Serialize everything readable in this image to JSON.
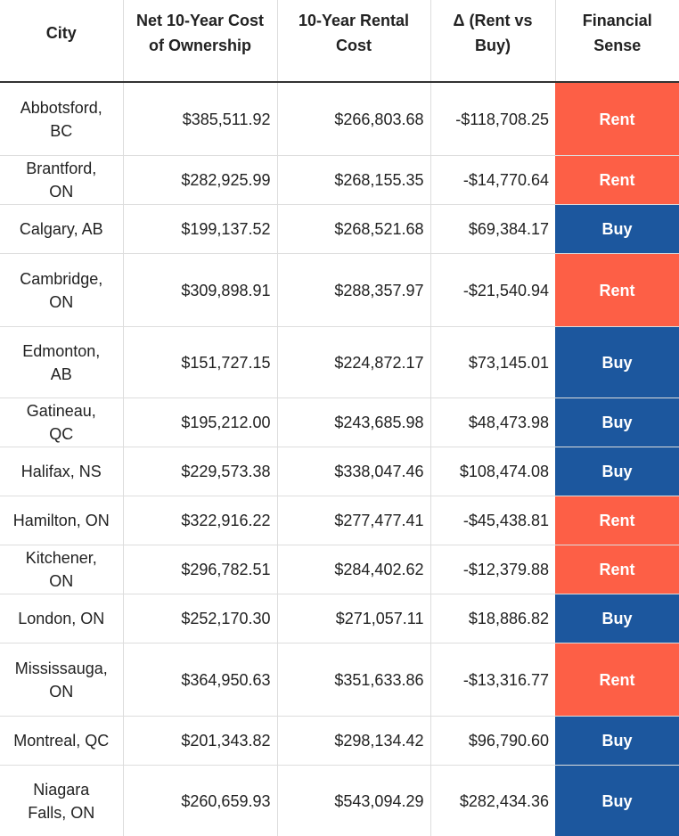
{
  "table": {
    "header": [
      "City",
      "Net 10-Year Cost of Ownership",
      "10-Year Rental Cost",
      "Δ (Rent vs Buy)",
      "Financial Sense"
    ],
    "rows": [
      [
        "Abbotsford, BC",
        "$385,511.92",
        "$266,803.68",
        "-$118,708.25",
        "Rent"
      ],
      [
        "Brantford, ON",
        "$282,925.99",
        "$268,155.35",
        "-$14,770.64",
        "Rent"
      ],
      [
        "Calgary, AB",
        "$199,137.52",
        "$268,521.68",
        "$69,384.17",
        "Buy"
      ],
      [
        "Cambridge, ON",
        "$309,898.91",
        "$288,357.97",
        "-$21,540.94",
        "Rent"
      ],
      [
        "Edmonton, AB",
        "$151,727.15",
        "$224,872.17",
        "$73,145.01",
        "Buy"
      ],
      [
        "Gatineau, QC",
        "$195,212.00",
        "$243,685.98",
        "$48,473.98",
        "Buy"
      ],
      [
        "Halifax, NS",
        "$229,573.38",
        "$338,047.46",
        "$108,474.08",
        "Buy"
      ],
      [
        "Hamilton, ON",
        "$322,916.22",
        "$277,477.41",
        "-$45,438.81",
        "Rent"
      ],
      [
        "Kitchener, ON",
        "$296,782.51",
        "$284,402.62",
        "-$12,379.88",
        "Rent"
      ],
      [
        "London, ON",
        "$252,170.30",
        "$271,057.11",
        "$18,886.82",
        "Buy"
      ],
      [
        "Mississauga, ON",
        "$364,950.63",
        "$351,633.86",
        "-$13,316.77",
        "Rent"
      ],
      [
        "Montreal, QC",
        "$201,343.82",
        "$298,134.42",
        "$96,790.60",
        "Buy"
      ],
      [
        "Niagara Falls, ON",
        "$260,659.93",
        "$543,094.29",
        "$282,434.36",
        "Buy"
      ]
    ],
    "sense_colors": {
      "Rent": "#fd5f46",
      "Buy": "#1c579e"
    }
  }
}
